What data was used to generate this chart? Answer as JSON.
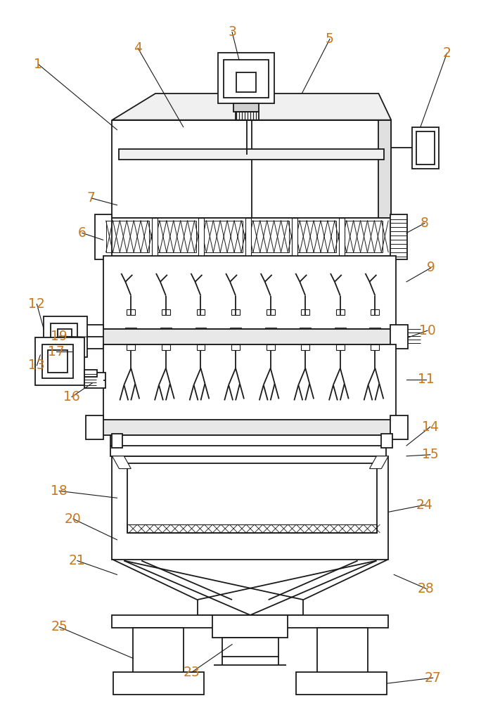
{
  "background_color": "#ffffff",
  "line_color": "#1a1a1a",
  "label_color": "#C87820",
  "fig_width": 6.84,
  "fig_height": 10.0,
  "dpi": 100
}
